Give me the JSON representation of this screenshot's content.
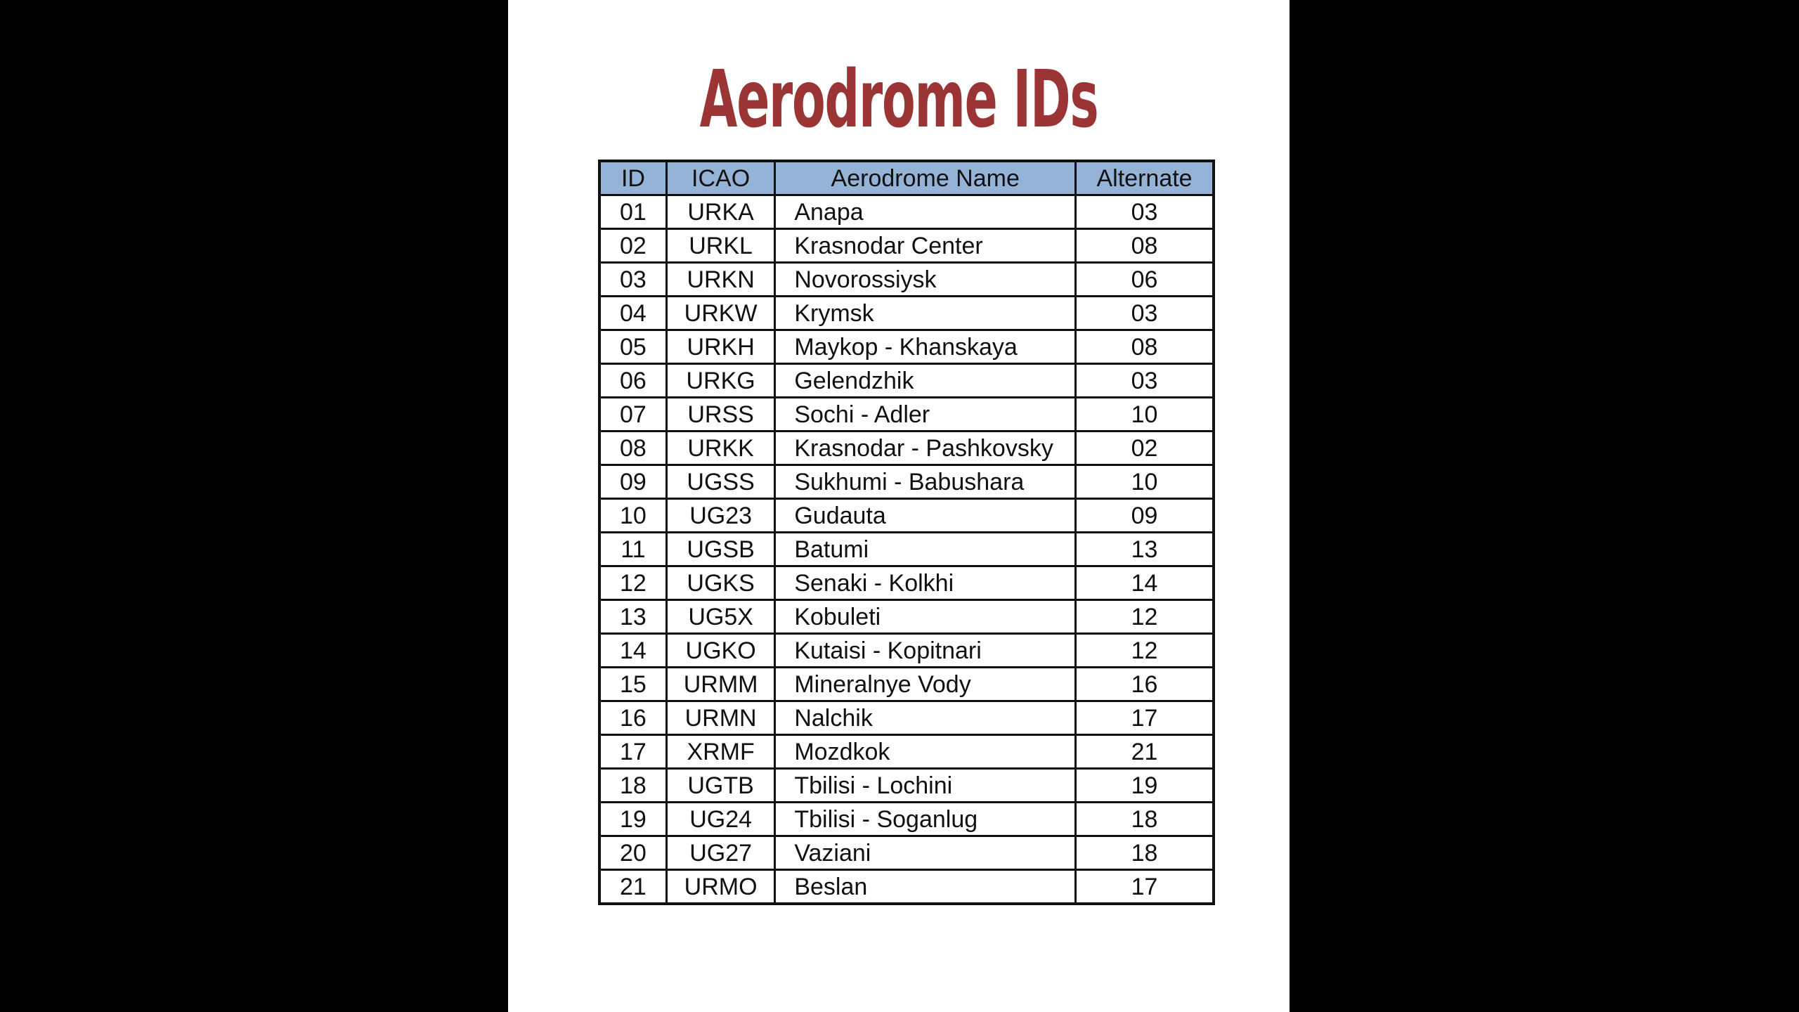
{
  "title": "Aerodrome IDs",
  "table": {
    "headers": [
      "ID",
      "ICAO",
      "Aerodrome Name",
      "Alternate"
    ],
    "rows": [
      [
        "01",
        "URKA",
        "Anapa",
        "03"
      ],
      [
        "02",
        "URKL",
        "Krasnodar Center",
        "08"
      ],
      [
        "03",
        "URKN",
        "Novorossiysk",
        "06"
      ],
      [
        "04",
        "URKW",
        "Krymsk",
        "03"
      ],
      [
        "05",
        "URKH",
        "Maykop - Khanskaya",
        "08"
      ],
      [
        "06",
        "URKG",
        "Gelendzhik",
        "03"
      ],
      [
        "07",
        "URSS",
        "Sochi - Adler",
        "10"
      ],
      [
        "08",
        "URKK",
        "Krasnodar - Pashkovsky",
        "02"
      ],
      [
        "09",
        "UGSS",
        "Sukhumi - Babushara",
        "10"
      ],
      [
        "10",
        "UG23",
        "Gudauta",
        "09"
      ],
      [
        "11",
        "UGSB",
        "Batumi",
        "13"
      ],
      [
        "12",
        "UGKS",
        "Senaki - Kolkhi",
        "14"
      ],
      [
        "13",
        "UG5X",
        "Kobuleti",
        "12"
      ],
      [
        "14",
        "UGKO",
        "Kutaisi - Kopitnari",
        "12"
      ],
      [
        "15",
        "URMM",
        "Mineralnye Vody",
        "16"
      ],
      [
        "16",
        "URMN",
        "Nalchik",
        "17"
      ],
      [
        "17",
        "XRMF",
        "Mozdkok",
        "21"
      ],
      [
        "18",
        "UGTB",
        "Tbilisi - Lochini",
        "19"
      ],
      [
        "19",
        "UG24",
        "Tbilisi - Soganlug",
        "18"
      ],
      [
        "20",
        "UG27",
        "Vaziani",
        "18"
      ],
      [
        "21",
        "URMO",
        "Beslan",
        "17"
      ]
    ]
  },
  "colors": {
    "title": "#9b3535",
    "header_bg": "#95b3d7",
    "background": "#000000",
    "page": "#ffffff"
  }
}
